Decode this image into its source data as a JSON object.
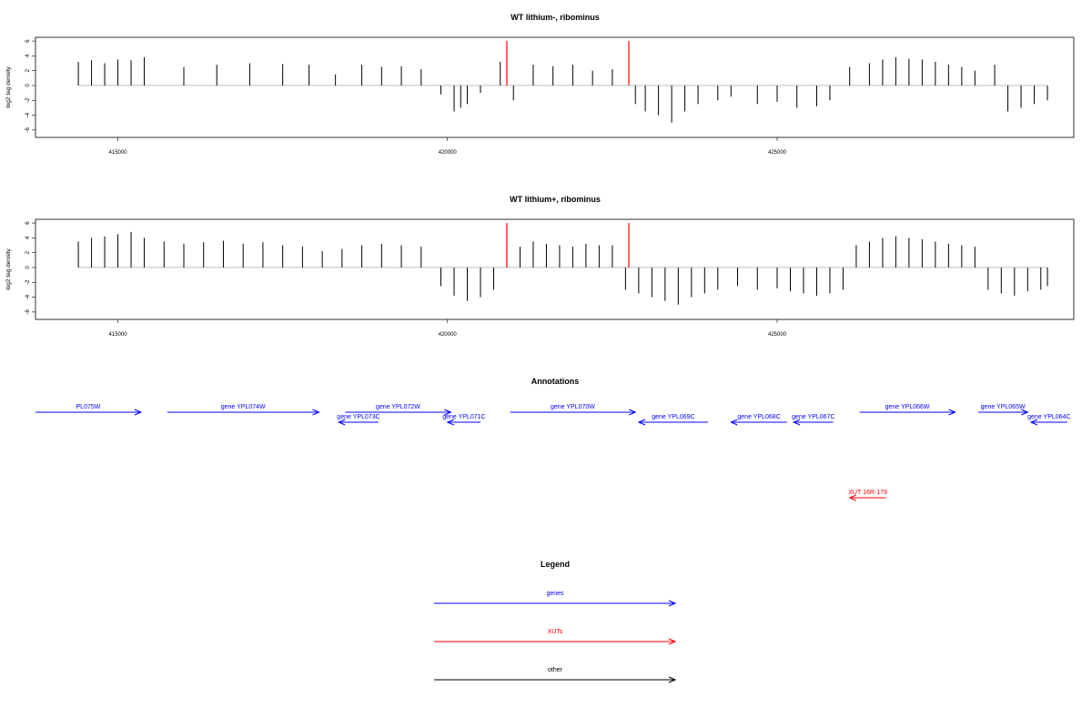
{
  "chart_data": [
    {
      "type": "bar",
      "title": "WT lithium-, ribominus",
      "ylabel": "log2 tag density",
      "xlabel": "",
      "xlim": [
        413750,
        429500
      ],
      "ylim": [
        -7,
        6.5
      ],
      "yticks": [
        -6,
        -4,
        -2,
        0,
        2,
        4,
        6
      ],
      "xticks": [
        415000,
        420000,
        425000
      ],
      "markers": [
        420900,
        422750
      ],
      "series": [
        {
          "x": [
            414400,
            414600,
            414800,
            415000,
            415200,
            415400,
            416000,
            416500,
            417000,
            417500,
            417900,
            418300,
            418700,
            419000,
            419300,
            419600,
            419900,
            420100,
            420200,
            420300,
            420500,
            420800,
            421000,
            421300,
            421600,
            421900,
            422200,
            422500,
            422750,
            422850,
            423000,
            423200,
            423400,
            423600,
            423800,
            424100,
            424300,
            424700,
            425000,
            425300,
            425600,
            425800,
            426100,
            426400,
            426600,
            426800,
            427000,
            427200,
            427400,
            427600,
            427800,
            428000,
            428300,
            428500,
            428700,
            428900,
            429100
          ],
          "values": [
            3.2,
            3.4,
            3.0,
            3.5,
            3.4,
            3.8,
            2.5,
            2.8,
            3.0,
            2.9,
            2.8,
            1.5,
            2.8,
            2.5,
            2.6,
            2.2,
            -1.2,
            -3.5,
            -3.0,
            -2.5,
            -1.0,
            3.2,
            -2.0,
            2.8,
            2.6,
            2.8,
            2.0,
            2.2,
            1.8,
            -2.5,
            -3.5,
            -4.0,
            -5.0,
            -3.5,
            -2.5,
            -2.0,
            -1.5,
            -2.5,
            -2.2,
            -3.0,
            -2.8,
            -2.0,
            2.5,
            3.0,
            3.5,
            3.8,
            3.6,
            3.5,
            3.2,
            2.8,
            2.5,
            2.0,
            2.8,
            -3.5,
            -3.0,
            -2.5,
            -2.0
          ]
        }
      ]
    },
    {
      "type": "bar",
      "title": "WT lithium+, ribominus",
      "ylabel": "log2 tag density",
      "xlabel": "",
      "xlim": [
        413750,
        429500
      ],
      "ylim": [
        -7,
        6.5
      ],
      "yticks": [
        -6,
        -4,
        -2,
        0,
        2,
        4,
        6
      ],
      "xticks": [
        415000,
        420000,
        425000
      ],
      "markers": [
        420900,
        422750
      ],
      "series": [
        {
          "x": [
            414400,
            414600,
            414800,
            415000,
            415200,
            415400,
            415700,
            416000,
            416300,
            416600,
            416900,
            417200,
            417500,
            417800,
            418100,
            418400,
            418700,
            419000,
            419300,
            419600,
            419900,
            420100,
            420300,
            420500,
            420700,
            420900,
            421100,
            421300,
            421500,
            421700,
            421900,
            422100,
            422300,
            422500,
            422700,
            422900,
            423100,
            423300,
            423500,
            423700,
            423900,
            424100,
            424400,
            424700,
            425000,
            425200,
            425400,
            425600,
            425800,
            426000,
            426200,
            426400,
            426600,
            426800,
            427000,
            427200,
            427400,
            427600,
            427800,
            428000,
            428200,
            428400,
            428600,
            428800,
            429000,
            429100
          ],
          "values": [
            3.5,
            4.0,
            4.2,
            4.5,
            4.8,
            4.0,
            3.5,
            3.2,
            3.4,
            3.6,
            3.2,
            3.4,
            3.0,
            2.8,
            2.2,
            2.5,
            3.0,
            3.2,
            3.0,
            2.8,
            -2.5,
            -3.8,
            -4.5,
            -4.0,
            -3.0,
            2.5,
            2.8,
            3.5,
            3.2,
            3.0,
            2.8,
            3.2,
            3.0,
            3.0,
            -3.0,
            -3.5,
            -4.0,
            -4.5,
            -5.0,
            -4.0,
            -3.5,
            -3.0,
            -2.5,
            -3.0,
            -2.8,
            -3.2,
            -3.5,
            -3.8,
            -3.5,
            -3.0,
            3.0,
            3.5,
            4.0,
            4.2,
            4.0,
            3.8,
            3.5,
            3.2,
            3.0,
            2.8,
            -3.0,
            -3.5,
            -3.8,
            -3.2,
            -3.0,
            -2.5
          ]
        }
      ]
    }
  ],
  "annotations": {
    "title": "Annotations",
    "genes": [
      {
        "label": "PL075W",
        "start": 413750,
        "end": 415350,
        "strand": "+",
        "row": 0,
        "kind": "gene"
      },
      {
        "label": "gene YPL074W",
        "start": 415750,
        "end": 418050,
        "strand": "+",
        "row": 0,
        "kind": "gene"
      },
      {
        "label": "gene YPL072W",
        "start": 418450,
        "end": 420050,
        "strand": "+",
        "row": 0,
        "kind": "gene"
      },
      {
        "label": "gene YPL073C",
        "start": 418350,
        "end": 418950,
        "strand": "-",
        "row": 1,
        "kind": "gene"
      },
      {
        "label": "gene YPL071C",
        "start": 420000,
        "end": 420500,
        "strand": "-",
        "row": 1,
        "kind": "gene"
      },
      {
        "label": "gene YPL070W",
        "start": 420950,
        "end": 422850,
        "strand": "+",
        "row": 0,
        "kind": "gene"
      },
      {
        "label": "gene YPL069C",
        "start": 422900,
        "end": 423950,
        "strand": "-",
        "row": 1,
        "kind": "gene"
      },
      {
        "label": "gene YPL068C",
        "start": 424300,
        "end": 425150,
        "strand": "-",
        "row": 1,
        "kind": "gene"
      },
      {
        "label": "gene YPL067C",
        "start": 425250,
        "end": 425850,
        "strand": "-",
        "row": 1,
        "kind": "gene"
      },
      {
        "label": "gene YPL066W",
        "start": 426250,
        "end": 427700,
        "strand": "+",
        "row": 0,
        "kind": "gene"
      },
      {
        "label": "gene YPL065W",
        "start": 428050,
        "end": 428800,
        "strand": "+",
        "row": 0,
        "kind": "gene"
      },
      {
        "label": "gene YPL064C",
        "start": 428850,
        "end": 429400,
        "strand": "-",
        "row": 1,
        "kind": "gene"
      },
      {
        "label": "XUT 16R-179",
        "start": 426100,
        "end": 426650,
        "strand": "-",
        "row": 2,
        "kind": "xut"
      }
    ]
  },
  "legend": {
    "title": "Legend",
    "items": [
      {
        "label": "genes",
        "color": "#0000ff"
      },
      {
        "label": "XUTs",
        "color": "#ff0000"
      },
      {
        "label": "other",
        "color": "#000000"
      }
    ]
  },
  "colors": {
    "gene": "#0000ff",
    "xut": "#ff0000",
    "other": "#000000",
    "marker": "#ff0000",
    "bar": "#000000",
    "axis": "#000000",
    "baseline": "#999999"
  }
}
